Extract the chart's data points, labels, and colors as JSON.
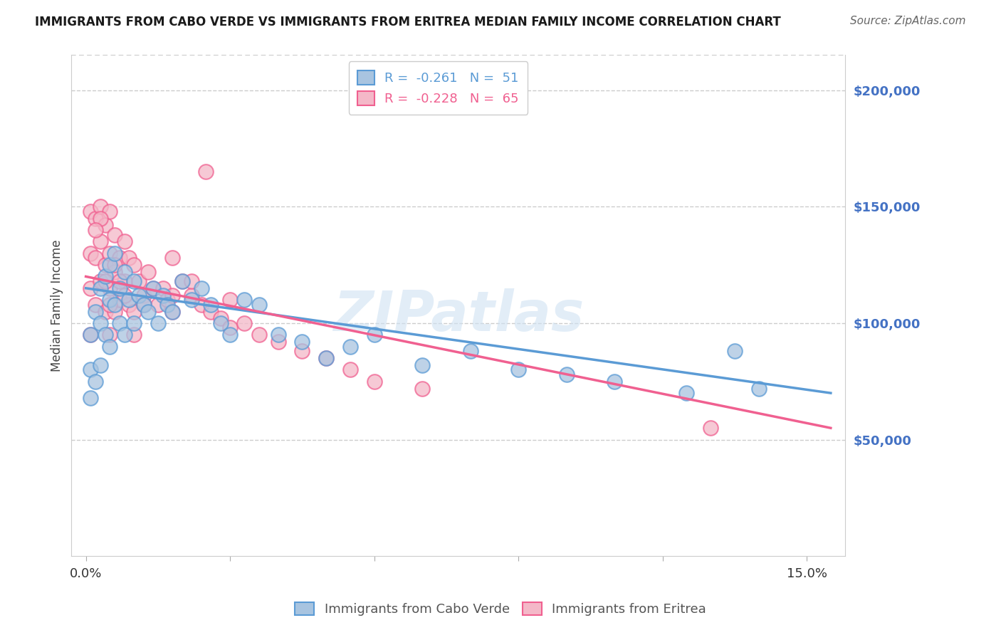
{
  "title": "IMMIGRANTS FROM CABO VERDE VS IMMIGRANTS FROM ERITREA MEDIAN FAMILY INCOME CORRELATION CHART",
  "source": "Source: ZipAtlas.com",
  "ylabel": "Median Family Income",
  "y_ticks": [
    50000,
    100000,
    150000,
    200000
  ],
  "y_tick_labels": [
    "$50,000",
    "$100,000",
    "$150,000",
    "$200,000"
  ],
  "x_ticks": [
    0.0,
    0.03,
    0.06,
    0.09,
    0.12,
    0.15
  ],
  "x_tick_labels": [
    "0.0%",
    "",
    "",
    "",
    "",
    "15.0%"
  ],
  "xlim": [
    -0.003,
    0.158
  ],
  "ylim": [
    0,
    215000
  ],
  "cabo_verde_color": "#a8c4e0",
  "eritrea_color": "#f4b8c8",
  "cabo_verde_line_color": "#5b9bd5",
  "eritrea_line_color": "#f06090",
  "legend_R_cabo_val": "-0.261",
  "legend_N_cabo_val": "51",
  "legend_R_eritrea_val": "-0.228",
  "legend_N_eritrea_val": "65",
  "watermark": "ZIPatlas",
  "cabo_verde_x": [
    0.001,
    0.001,
    0.001,
    0.002,
    0.002,
    0.003,
    0.003,
    0.003,
    0.004,
    0.004,
    0.005,
    0.005,
    0.005,
    0.006,
    0.006,
    0.007,
    0.007,
    0.008,
    0.008,
    0.009,
    0.01,
    0.01,
    0.011,
    0.012,
    0.013,
    0.014,
    0.015,
    0.016,
    0.017,
    0.018,
    0.02,
    0.022,
    0.024,
    0.026,
    0.028,
    0.03,
    0.033,
    0.036,
    0.04,
    0.045,
    0.05,
    0.055,
    0.06,
    0.07,
    0.08,
    0.09,
    0.1,
    0.11,
    0.125,
    0.135,
    0.14
  ],
  "cabo_verde_y": [
    95000,
    80000,
    68000,
    105000,
    75000,
    115000,
    100000,
    82000,
    120000,
    95000,
    110000,
    125000,
    90000,
    108000,
    130000,
    115000,
    100000,
    122000,
    95000,
    110000,
    118000,
    100000,
    112000,
    108000,
    105000,
    115000,
    100000,
    112000,
    108000,
    105000,
    118000,
    110000,
    115000,
    108000,
    100000,
    95000,
    110000,
    108000,
    95000,
    92000,
    85000,
    90000,
    95000,
    82000,
    88000,
    80000,
    78000,
    75000,
    70000,
    88000,
    72000
  ],
  "eritrea_x": [
    0.001,
    0.001,
    0.001,
    0.001,
    0.002,
    0.002,
    0.002,
    0.003,
    0.003,
    0.003,
    0.004,
    0.004,
    0.004,
    0.005,
    0.005,
    0.005,
    0.005,
    0.006,
    0.006,
    0.006,
    0.007,
    0.007,
    0.008,
    0.008,
    0.009,
    0.009,
    0.01,
    0.01,
    0.011,
    0.012,
    0.013,
    0.014,
    0.015,
    0.016,
    0.017,
    0.018,
    0.02,
    0.022,
    0.024,
    0.026,
    0.028,
    0.03,
    0.033,
    0.036,
    0.04,
    0.045,
    0.05,
    0.055,
    0.06,
    0.07,
    0.025,
    0.018,
    0.022,
    0.03,
    0.01,
    0.008,
    0.005,
    0.004,
    0.003,
    0.002,
    0.006,
    0.007,
    0.012,
    0.018,
    0.13
  ],
  "eritrea_y": [
    148000,
    130000,
    115000,
    95000,
    145000,
    128000,
    108000,
    150000,
    135000,
    118000,
    142000,
    125000,
    105000,
    148000,
    130000,
    115000,
    95000,
    138000,
    122000,
    105000,
    128000,
    110000,
    135000,
    118000,
    128000,
    108000,
    125000,
    105000,
    118000,
    112000,
    122000,
    115000,
    108000,
    115000,
    110000,
    105000,
    118000,
    112000,
    108000,
    105000,
    102000,
    98000,
    100000,
    95000,
    92000,
    88000,
    85000,
    80000,
    75000,
    72000,
    165000,
    128000,
    118000,
    110000,
    95000,
    112000,
    108000,
    118000,
    145000,
    140000,
    125000,
    118000,
    108000,
    112000,
    55000
  ]
}
